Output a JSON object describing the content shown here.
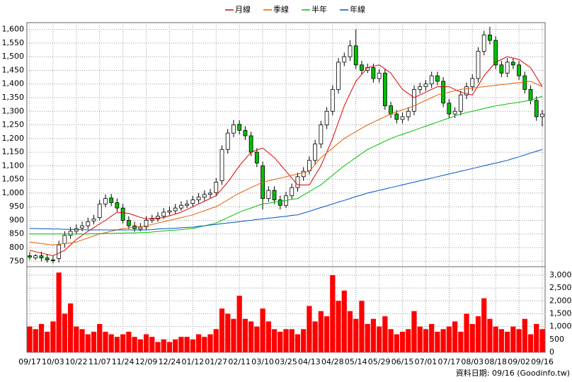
{
  "chart_data": [
    {
      "type": "candlestick",
      "legend": "top",
      "grid": true,
      "up_color": "#ffffff",
      "down_color": "#00c000",
      "categories": [
        "09/17",
        null,
        null,
        null,
        "10/03",
        null,
        null,
        null,
        "10/22",
        null,
        null,
        null,
        "11/07",
        null,
        null,
        null,
        "11/24",
        null,
        null,
        null,
        "12/09",
        null,
        null,
        null,
        "12/24",
        null,
        null,
        null,
        "01/12",
        null,
        null,
        null,
        "01/27",
        null,
        null,
        null,
        "02/11",
        null,
        null,
        null,
        "03/10",
        null,
        null,
        null,
        "03/25",
        null,
        null,
        null,
        "04/13",
        null,
        null,
        null,
        "04/28",
        null,
        null,
        null,
        "05/14",
        null,
        null,
        null,
        "05/29",
        null,
        null,
        null,
        "06/15",
        null,
        null,
        null,
        "07/01",
        null,
        null,
        null,
        "07/17",
        null,
        null,
        null,
        "08/03",
        null,
        null,
        null,
        "08/18",
        null,
        null,
        null,
        "09/02",
        null,
        null,
        null,
        "09/16"
      ],
      "open": [
        770,
        762,
        770,
        762,
        755,
        760,
        815,
        845,
        860,
        872,
        880,
        898,
        910,
        960,
        982,
        965,
        945,
        900,
        880,
        868,
        876,
        900,
        905,
        915,
        930,
        935,
        945,
        955,
        962,
        975,
        985,
        995,
        1002,
        1045,
        1160,
        1220,
        1252,
        1230,
        1210,
        1150,
        1100,
        980,
        1010,
        975,
        955,
        990,
        1020,
        1060,
        1082,
        1120,
        1180,
        1250,
        1300,
        1380,
        1480,
        1500,
        1540,
        1470,
        1450,
        1460,
        1420,
        1440,
        1320,
        1290,
        1270,
        1280,
        1300,
        1380,
        1390,
        1400,
        1430,
        1410,
        1330,
        1290,
        1300,
        1360,
        1390,
        1420,
        1520,
        1580,
        1560,
        1470,
        1440,
        1480,
        1470,
        1430,
        1380,
        1340,
        1280
      ],
      "high": [
        785,
        777,
        785,
        777,
        768,
        825,
        860,
        875,
        885,
        895,
        910,
        920,
        975,
        995,
        997,
        980,
        960,
        915,
        895,
        890,
        915,
        920,
        930,
        945,
        950,
        960,
        970,
        975,
        990,
        1000,
        1010,
        1015,
        1055,
        1175,
        1235,
        1268,
        1267,
        1245,
        1225,
        1165,
        1115,
        1025,
        1025,
        990,
        1005,
        1035,
        1075,
        1095,
        1135,
        1195,
        1265,
        1315,
        1395,
        1495,
        1515,
        1560,
        1600,
        1485,
        1475,
        1475,
        1455,
        1455,
        1335,
        1305,
        1295,
        1315,
        1395,
        1405,
        1415,
        1445,
        1445,
        1425,
        1345,
        1315,
        1375,
        1405,
        1435,
        1535,
        1595,
        1610,
        1575,
        1485,
        1495,
        1495,
        1485,
        1445,
        1395,
        1355,
        1305
      ],
      "low": [
        755,
        755,
        750,
        745,
        742,
        745,
        800,
        832,
        848,
        860,
        868,
        885,
        900,
        948,
        952,
        932,
        888,
        868,
        858,
        860,
        865,
        890,
        895,
        905,
        920,
        925,
        935,
        945,
        950,
        962,
        972,
        982,
        990,
        1030,
        1145,
        1205,
        1215,
        1195,
        1135,
        1095,
        940,
        968,
        960,
        940,
        945,
        978,
        1005,
        1045,
        1068,
        1105,
        1165,
        1235,
        1285,
        1365,
        1465,
        1485,
        1455,
        1435,
        1440,
        1405,
        1405,
        1305,
        1275,
        1255,
        1255,
        1265,
        1285,
        1365,
        1375,
        1385,
        1395,
        1315,
        1275,
        1275,
        1285,
        1345,
        1375,
        1405,
        1505,
        1545,
        1455,
        1425,
        1425,
        1455,
        1415,
        1365,
        1325,
        1265,
        1245
      ],
      "close": [
        765,
        770,
        762,
        755,
        752,
        810,
        845,
        860,
        870,
        880,
        895,
        905,
        960,
        980,
        965,
        945,
        900,
        880,
        870,
        875,
        900,
        905,
        915,
        930,
        935,
        945,
        955,
        960,
        975,
        985,
        995,
        1000,
        1040,
        1160,
        1220,
        1250,
        1230,
        1210,
        1150,
        1110,
        980,
        1010,
        975,
        955,
        990,
        1020,
        1060,
        1080,
        1120,
        1180,
        1250,
        1300,
        1380,
        1480,
        1500,
        1540,
        1470,
        1450,
        1460,
        1420,
        1440,
        1320,
        1290,
        1270,
        1280,
        1300,
        1380,
        1390,
        1400,
        1430,
        1410,
        1330,
        1290,
        1300,
        1360,
        1390,
        1420,
        1520,
        1580,
        1560,
        1470,
        1440,
        1480,
        1470,
        1430,
        1380,
        1340,
        1280,
        1290
      ],
      "series": [
        {
          "name": "月線",
          "color": "#e00000",
          "values": [
            790,
            785,
            780,
            775,
            770,
            780,
            790,
            810,
            830,
            845,
            860,
            873,
            887,
            900,
            915,
            930,
            928,
            925,
            918,
            911,
            905,
            907,
            908,
            910,
            917,
            923,
            930,
            940,
            950,
            960,
            970,
            980,
            990,
            1015,
            1040,
            1070,
            1100,
            1125,
            1150,
            1158,
            1165,
            1148,
            1130,
            1105,
            1080,
            1055,
            1030,
            1030,
            1030,
            1065,
            1100,
            1150,
            1200,
            1260,
            1320,
            1365,
            1410,
            1435,
            1460,
            1465,
            1470,
            1455,
            1440,
            1410,
            1380,
            1365,
            1350,
            1360,
            1370,
            1380,
            1390,
            1390,
            1390,
            1380,
            1370,
            1365,
            1360,
            1395,
            1430,
            1455,
            1480,
            1490,
            1500,
            1495,
            1490,
            1475,
            1460,
            1425,
            1390
          ]
        },
        {
          "name": "季線",
          "color": "#e06000",
          "values": [
            820,
            818,
            815,
            812,
            810,
            812,
            815,
            817,
            820,
            828,
            835,
            843,
            850,
            855,
            860,
            865,
            870,
            872,
            875,
            877,
            880,
            885,
            890,
            895,
            900,
            905,
            910,
            915,
            920,
            928,
            935,
            943,
            950,
            962,
            975,
            988,
            1000,
            1010,
            1020,
            1030,
            1040,
            1045,
            1050,
            1055,
            1060,
            1065,
            1070,
            1075,
            1080,
            1105,
            1130,
            1148,
            1165,
            1183,
            1200,
            1213,
            1225,
            1238,
            1250,
            1260,
            1270,
            1280,
            1290,
            1298,
            1305,
            1313,
            1320,
            1330,
            1340,
            1350,
            1360,
            1365,
            1370,
            1375,
            1380,
            1383,
            1385,
            1388,
            1390,
            1393,
            1395,
            1398,
            1400,
            1403,
            1405,
            1408,
            1410,
            1400,
            1390
          ]
        },
        {
          "name": "半年",
          "color": "#00c000",
          "values": [
            850,
            850,
            850,
            850,
            850,
            850,
            850,
            850,
            850,
            850,
            850,
            851,
            851,
            852,
            852,
            853,
            853,
            854,
            854,
            855,
            855,
            857,
            859,
            861,
            863,
            864,
            866,
            868,
            870,
            875,
            880,
            885,
            890,
            900,
            910,
            920,
            930,
            938,
            945,
            953,
            960,
            963,
            967,
            970,
            973,
            977,
            980,
            993,
            1005,
            1018,
            1030,
            1048,
            1065,
            1083,
            1100,
            1115,
            1130,
            1145,
            1160,
            1170,
            1180,
            1190,
            1200,
            1208,
            1215,
            1223,
            1230,
            1238,
            1245,
            1253,
            1260,
            1268,
            1275,
            1283,
            1290,
            1295,
            1300,
            1305,
            1310,
            1315,
            1320,
            1323,
            1327,
            1330,
            1333,
            1337,
            1340,
            1348,
            1355
          ]
        },
        {
          "name": "年線",
          "color": "#0050c8",
          "values": [
            870,
            870,
            869,
            869,
            868,
            868,
            867,
            867,
            866,
            866,
            865,
            865,
            865,
            865,
            865,
            865,
            865,
            865,
            865,
            865,
            865,
            866,
            868,
            869,
            870,
            871,
            873,
            874,
            875,
            878,
            880,
            883,
            885,
            888,
            890,
            893,
            895,
            898,
            900,
            903,
            905,
            908,
            910,
            913,
            915,
            918,
            920,
            927,
            933,
            940,
            947,
            953,
            960,
            967,
            973,
            980,
            987,
            993,
            1000,
            1005,
            1010,
            1015,
            1020,
            1025,
            1030,
            1035,
            1040,
            1045,
            1050,
            1055,
            1060,
            1065,
            1070,
            1075,
            1080,
            1085,
            1090,
            1095,
            1100,
            1105,
            1110,
            1115,
            1120,
            1127,
            1133,
            1140,
            1147,
            1153,
            1160
          ]
        }
      ],
      "ylim": [
        730,
        1625
      ],
      "yticks": [
        750,
        800,
        850,
        900,
        950,
        {
          "value": 1000,
          "label": "1,000"
        },
        {
          "value": 1050,
          "label": "1,050"
        },
        {
          "value": 1100,
          "label": "1,100"
        },
        {
          "value": 1150,
          "label": "1,150"
        },
        {
          "value": 1200,
          "label": "1,200"
        },
        {
          "value": 1250,
          "label": "1,250"
        },
        {
          "value": 1300,
          "label": "1,300"
        },
        {
          "value": 1350,
          "label": "1,350"
        },
        {
          "value": 1400,
          "label": "1,400"
        },
        {
          "value": 1450,
          "label": "1,450"
        },
        {
          "value": 1500,
          "label": "1,500"
        },
        {
          "value": 1550,
          "label": "1,550"
        },
        {
          "value": 1600,
          "label": "1,600"
        }
      ]
    },
    {
      "type": "bar",
      "color": "#ff0000",
      "grid": true,
      "values": [
        1000,
        900,
        1100,
        800,
        1200,
        3100,
        1500,
        1900,
        1000,
        900,
        700,
        800,
        1100,
        800,
        700,
        600,
        700,
        800,
        600,
        500,
        700,
        600,
        400,
        500,
        400,
        500,
        600,
        600,
        500,
        700,
        600,
        700,
        900,
        1700,
        1500,
        1300,
        2200,
        1300,
        1200,
        1000,
        1700,
        1200,
        900,
        800,
        900,
        900,
        700,
        900,
        1800,
        1200,
        1600,
        1400,
        3000,
        2000,
        2400,
        1600,
        1300,
        2000,
        1100,
        1300,
        1000,
        1400,
        900,
        700,
        800,
        900,
        1600,
        1000,
        900,
        1100,
        800,
        900,
        1000,
        1200,
        800,
        1500,
        1100,
        1400,
        2100,
        1300,
        1000,
        900,
        800,
        1000,
        900,
        1300,
        700,
        1100,
        900
      ],
      "ylim": [
        0,
        3300
      ],
      "yticks": [
        0,
        500,
        {
          "value": 1000,
          "label": "1,000"
        },
        {
          "value": 1500,
          "label": "1,500"
        },
        {
          "value": 2000,
          "label": "2,000"
        },
        {
          "value": 2500,
          "label": "2,500"
        },
        {
          "value": 3000,
          "label": "3,000"
        }
      ]
    }
  ],
  "footer": "資料日期: 09/16 (Goodinfo.tw)"
}
